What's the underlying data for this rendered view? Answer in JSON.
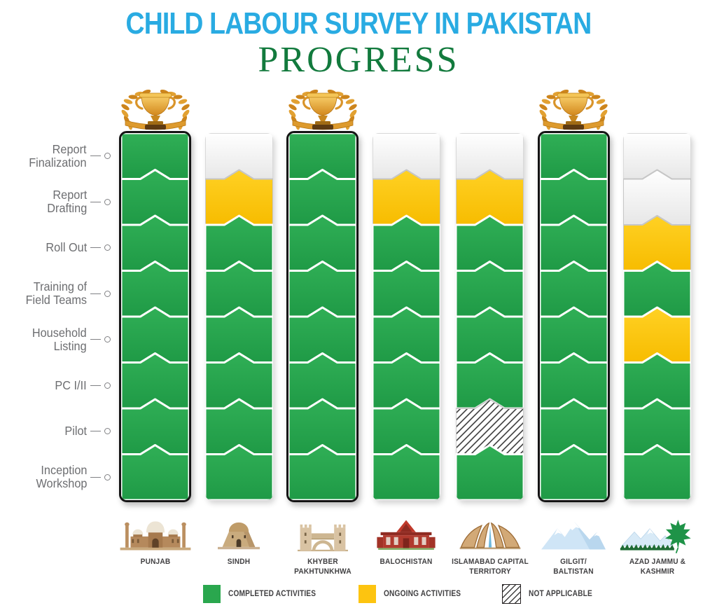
{
  "title": {
    "text": "CHILD LABOUR SURVEY IN PAKISTAN",
    "color": "#29abe2"
  },
  "subtitle": {
    "text": "PROGRESS",
    "color": "#127a3d"
  },
  "chart_data": {
    "type": "table",
    "description": "Stacked status columns: survey progress per region, activities fill bottom-up from Inception Workshop to Report Finalization. Trophy marks fully completed regions.",
    "activities_top_to_bottom": [
      "Report\nFinalization",
      "Report\nDrafting",
      "Roll Out",
      "Training of\nField Teams",
      "Household\nListing",
      "PC I/II",
      "Pilot",
      "Inception\nWorkshop"
    ],
    "status_colors": {
      "completed": "#2aa74e",
      "ongoing": "#fdc410",
      "not_started": "#ffffff",
      "not_applicable": "white-with-black-diagonal-hatch"
    },
    "columns": [
      {
        "region": "PUNJAB",
        "icon": "badshahi-mosque",
        "trophy": true,
        "statuses_top_to_bottom": [
          "completed",
          "completed",
          "completed",
          "completed",
          "completed",
          "completed",
          "completed",
          "completed"
        ]
      },
      {
        "region": "SINDH",
        "icon": "sindh-tomb",
        "trophy": false,
        "statuses_top_to_bottom": [
          "not_started",
          "ongoing",
          "completed",
          "completed",
          "completed",
          "completed",
          "completed",
          "completed"
        ]
      },
      {
        "region": "KHYBER\nPAKHTUNKHWA",
        "icon": "khyber-gate",
        "trophy": true,
        "statuses_top_to_bottom": [
          "completed",
          "completed",
          "completed",
          "completed",
          "completed",
          "completed",
          "completed",
          "completed"
        ]
      },
      {
        "region": "BALOCHISTAN",
        "icon": "ziarat-residency",
        "trophy": false,
        "statuses_top_to_bottom": [
          "not_started",
          "ongoing",
          "completed",
          "completed",
          "completed",
          "completed",
          "completed",
          "completed"
        ]
      },
      {
        "region": "ISLAMABAD CAPITAL\nTERRITORY",
        "icon": "faisal-mosque",
        "trophy": false,
        "statuses_top_to_bottom": [
          "not_started",
          "ongoing",
          "completed",
          "completed",
          "completed",
          "completed",
          "not_applicable",
          "completed"
        ]
      },
      {
        "region": "GILGIT/\nBALTISTAN",
        "icon": "snow-mountain",
        "trophy": true,
        "statuses_top_to_bottom": [
          "completed",
          "completed",
          "completed",
          "completed",
          "completed",
          "completed",
          "completed",
          "completed"
        ]
      },
      {
        "region": "AZAD JAMMU &\nKASHMIR",
        "icon": "mountains-chinar-leaf",
        "trophy": false,
        "statuses_top_to_bottom": [
          "not_started",
          "not_started",
          "ongoing",
          "completed",
          "ongoing",
          "completed",
          "completed",
          "completed"
        ]
      }
    ]
  },
  "legend": [
    {
      "label": "COMPLETED ACTIVITIES",
      "status": "completed"
    },
    {
      "label": "ONGOING ACTIVITIES",
      "status": "ongoing"
    },
    {
      "label": "NOT APPLICABLE",
      "status": "not_applicable"
    }
  ]
}
